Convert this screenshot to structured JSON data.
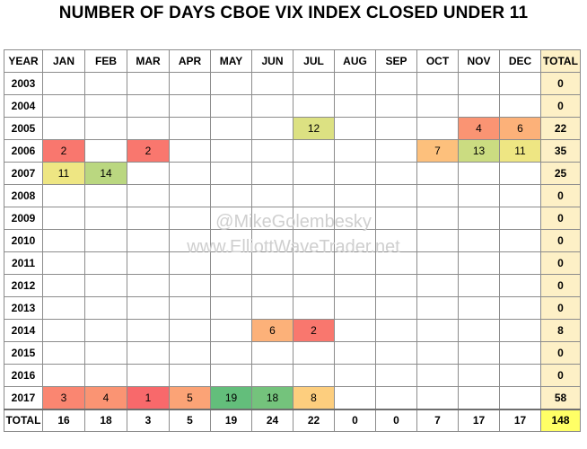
{
  "title": "NUMBER OF DAYS CBOE VIX INDEX CLOSED UNDER 11",
  "watermark": {
    "line1": "@MikeGolembesky",
    "line2": "www.ElliottWaveTrader.net"
  },
  "chart_data": {
    "type": "table",
    "title": "NUMBER OF DAYS CBOE VIX INDEX CLOSED UNDER 11",
    "columns": [
      "YEAR",
      "JAN",
      "FEB",
      "MAR",
      "APR",
      "MAY",
      "JUN",
      "JUL",
      "AUG",
      "SEP",
      "OCT",
      "NOV",
      "DEC",
      "TOTAL"
    ],
    "rows": [
      {
        "year": "2003",
        "values": [
          null,
          null,
          null,
          null,
          null,
          null,
          null,
          null,
          null,
          null,
          null,
          null
        ],
        "total": 0
      },
      {
        "year": "2004",
        "values": [
          null,
          null,
          null,
          null,
          null,
          null,
          null,
          null,
          null,
          null,
          null,
          null
        ],
        "total": 0
      },
      {
        "year": "2005",
        "values": [
          null,
          null,
          null,
          null,
          null,
          null,
          12,
          null,
          null,
          null,
          4,
          6
        ],
        "total": 22
      },
      {
        "year": "2006",
        "values": [
          2,
          null,
          2,
          null,
          null,
          null,
          null,
          null,
          null,
          7,
          13,
          11
        ],
        "total": 35
      },
      {
        "year": "2007",
        "values": [
          11,
          14,
          null,
          null,
          null,
          null,
          null,
          null,
          null,
          null,
          null,
          null
        ],
        "total": 25
      },
      {
        "year": "2008",
        "values": [
          null,
          null,
          null,
          null,
          null,
          null,
          null,
          null,
          null,
          null,
          null,
          null
        ],
        "total": 0
      },
      {
        "year": "2009",
        "values": [
          null,
          null,
          null,
          null,
          null,
          null,
          null,
          null,
          null,
          null,
          null,
          null
        ],
        "total": 0
      },
      {
        "year": "2010",
        "values": [
          null,
          null,
          null,
          null,
          null,
          null,
          null,
          null,
          null,
          null,
          null,
          null
        ],
        "total": 0
      },
      {
        "year": "2011",
        "values": [
          null,
          null,
          null,
          null,
          null,
          null,
          null,
          null,
          null,
          null,
          null,
          null
        ],
        "total": 0
      },
      {
        "year": "2012",
        "values": [
          null,
          null,
          null,
          null,
          null,
          null,
          null,
          null,
          null,
          null,
          null,
          null
        ],
        "total": 0
      },
      {
        "year": "2013",
        "values": [
          null,
          null,
          null,
          null,
          null,
          null,
          null,
          null,
          null,
          null,
          null,
          null
        ],
        "total": 0
      },
      {
        "year": "2014",
        "values": [
          null,
          null,
          null,
          null,
          null,
          6,
          2,
          null,
          null,
          null,
          null,
          null
        ],
        "total": 8
      },
      {
        "year": "2015",
        "values": [
          null,
          null,
          null,
          null,
          null,
          null,
          null,
          null,
          null,
          null,
          null,
          null
        ],
        "total": 0
      },
      {
        "year": "2016",
        "values": [
          null,
          null,
          null,
          null,
          null,
          null,
          null,
          null,
          null,
          null,
          null,
          null
        ],
        "total": 0
      },
      {
        "year": "2017",
        "values": [
          3,
          4,
          1,
          5,
          19,
          18,
          8,
          null,
          null,
          null,
          null,
          null
        ],
        "total": 58
      }
    ],
    "totals_row": {
      "label": "TOTAL",
      "values": [
        16,
        18,
        3,
        5,
        19,
        24,
        22,
        0,
        0,
        7,
        17,
        17
      ],
      "total": 148
    },
    "color_scale": {
      "type": "heatmap",
      "low": "#f8696b",
      "mid": "#ffeb84",
      "high": "#63be7b",
      "min": 1,
      "max": 19
    },
    "colors": {
      "total_column": "#fdf0c6",
      "grand_total": "#ffff66",
      "grid_line": "#8c8c8c"
    }
  }
}
